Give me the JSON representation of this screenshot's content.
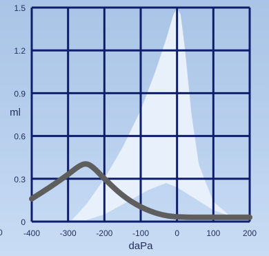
{
  "chart_data": {
    "type": "line",
    "title": "",
    "xlabel": "daPa",
    "ylabel": "ml",
    "x_ticks": [
      "-400",
      "-300",
      "-200",
      "-100",
      "0",
      "100",
      "200"
    ],
    "x_tick_values": [
      -400,
      -300,
      -200,
      -100,
      0,
      100,
      200
    ],
    "y_ticks": [
      "0",
      "0.3",
      "0.6",
      "0.9",
      "1.2",
      "1.5"
    ],
    "y_tick_values": [
      0,
      0.3,
      0.6,
      0.9,
      1.2,
      1.5
    ],
    "xlim": [
      -400,
      200
    ],
    "ylim": [
      0,
      1.5
    ],
    "grid": true,
    "left_edge_label": "0",
    "series": [
      {
        "color": "#5e5e5e",
        "x": [
          -400,
          -350,
          -300,
          -270,
          -250,
          -230,
          -200,
          -150,
          -100,
          -50,
          0,
          100,
          200
        ],
        "y": [
          0.16,
          0.24,
          0.33,
          0.39,
          0.41,
          0.38,
          0.3,
          0.18,
          0.1,
          0.05,
          0.03,
          0.03,
          0.03
        ]
      }
    ],
    "background_region": {
      "color": "#e8f0fb",
      "upper": {
        "x": [
          -290,
          -250,
          -200,
          -150,
          -100,
          -60,
          -30,
          -10,
          0,
          10,
          20,
          40,
          60,
          100,
          150,
          180
        ],
        "y": [
          0.01,
          0.12,
          0.3,
          0.52,
          0.78,
          1.05,
          1.28,
          1.45,
          1.5,
          1.45,
          1.25,
          0.75,
          0.4,
          0.14,
          0.03,
          0.01
        ]
      },
      "lower": {
        "x": [
          180,
          100,
          50,
          0,
          -30,
          -80,
          -150,
          -200,
          -250,
          -290
        ],
        "y": [
          0.01,
          0.08,
          0.16,
          0.24,
          0.27,
          0.22,
          0.12,
          0.05,
          0.01,
          0.01
        ]
      }
    }
  }
}
